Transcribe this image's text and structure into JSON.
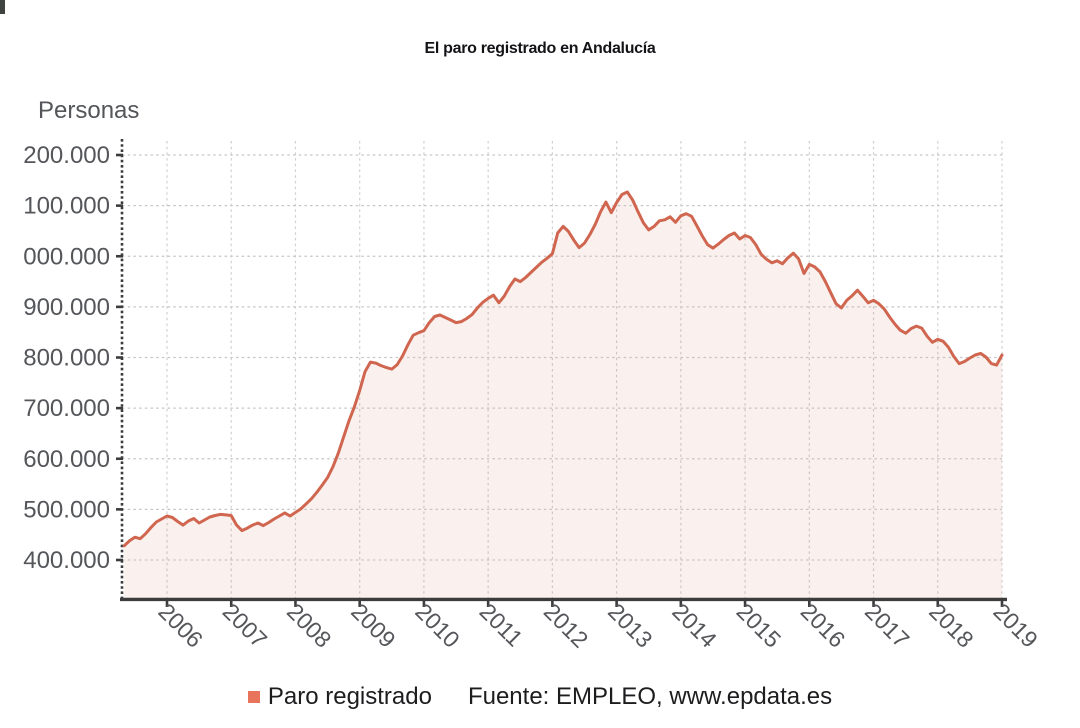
{
  "chart_data": {
    "type": "area",
    "title": "El paro registrado en Andalucía",
    "ylabel": "Personas",
    "xlabel": "",
    "ylim": [
      400000,
      1200000
    ],
    "x_range": [
      "2005-05",
      "2019-01"
    ],
    "grid": true,
    "legend_position": "bottom",
    "x_ticks": [
      "2006",
      "2007",
      "2008",
      "2009",
      "2010",
      "2011",
      "2012",
      "2013",
      "2014",
      "2015",
      "2016",
      "2017",
      "2018",
      "2019"
    ],
    "y_ticks": [
      {
        "value": 1200000,
        "label": "200.000"
      },
      {
        "value": 1100000,
        "label": "100.000"
      },
      {
        "value": 1000000,
        "label": "000.000"
      },
      {
        "value": 900000,
        "label": "900.000"
      },
      {
        "value": 800000,
        "label": "800.000"
      },
      {
        "value": 700000,
        "label": "700.000"
      },
      {
        "value": 600000,
        "label": "600.000"
      },
      {
        "value": 500000,
        "label": "500.000"
      },
      {
        "value": 400000,
        "label": "400.000"
      }
    ],
    "series": [
      {
        "name": "Paro registrado",
        "unit": "personas",
        "color": "#d0664f",
        "swatch_color": "#e9745c",
        "fill_color": "rgba(210,104,79,0.10)",
        "start": "2005-05",
        "frequency": "monthly",
        "values": [
          428000,
          438000,
          445000,
          442000,
          452000,
          464000,
          475000,
          481000,
          487000,
          484000,
          476000,
          469000,
          477000,
          482000,
          473000,
          479000,
          485000,
          488000,
          490000,
          489000,
          488000,
          469000,
          458000,
          463000,
          469000,
          473000,
          468000,
          474000,
          481000,
          487000,
          493000,
          487000,
          494000,
          501000,
          511000,
          521000,
          534000,
          548000,
          563000,
          584000,
          611000,
          643000,
          675000,
          702000,
          735000,
          772000,
          791000,
          789000,
          784000,
          780000,
          777000,
          786000,
          803000,
          825000,
          844000,
          849000,
          853000,
          869000,
          881000,
          884000,
          879000,
          874000,
          869000,
          871000,
          877000,
          885000,
          898000,
          909000,
          917000,
          923000,
          908000,
          921000,
          940000,
          955000,
          950000,
          958000,
          968000,
          978000,
          988000,
          996000,
          1005000,
          1046000,
          1059000,
          1049000,
          1032000,
          1017000,
          1026000,
          1043000,
          1063000,
          1088000,
          1107000,
          1086000,
          1106000,
          1122000,
          1127000,
          1111000,
          1088000,
          1066000,
          1052000,
          1059000,
          1070000,
          1072000,
          1078000,
          1067000,
          1080000,
          1084000,
          1079000,
          1060000,
          1040000,
          1023000,
          1016000,
          1024000,
          1033000,
          1041000,
          1046000,
          1034000,
          1041000,
          1037000,
          1023000,
          1004000,
          994000,
          987000,
          991000,
          985000,
          997000,
          1006000,
          995000,
          966000,
          984000,
          979000,
          969000,
          950000,
          928000,
          906000,
          898000,
          913000,
          922000,
          933000,
          921000,
          908000,
          913000,
          906000,
          896000,
          880000,
          866000,
          854000,
          848000,
          857000,
          862000,
          858000,
          842000,
          830000,
          836000,
          832000,
          820000,
          802000,
          788000,
          792000,
          799000,
          805000,
          808000,
          801000,
          788000,
          785000,
          805000
        ]
      }
    ]
  },
  "footer": {
    "legend_label": "Paro registrado",
    "source": "Fuente: EMPLEO, www.epdata.es"
  }
}
